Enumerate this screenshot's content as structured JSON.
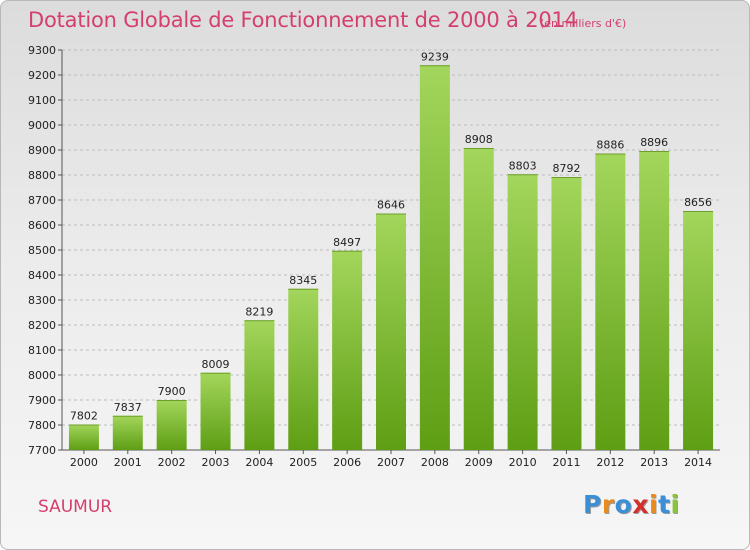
{
  "title": "Dotation Globale de Fonctionnement de 2000 à 2014",
  "subtitle": "(en milliers d'€)",
  "city": "SAUMUR",
  "logo": {
    "letters": [
      "P",
      "r",
      "o",
      "x",
      "i",
      "t",
      "i"
    ],
    "colors": [
      "#3b8fd6",
      "#e98a1f",
      "#3b8fd6",
      "#d6302c",
      "#e98a1f",
      "#3b8fd6",
      "#8cc33c"
    ]
  },
  "colors": {
    "title": "#d43f6e",
    "bar_top": "#a3d65c",
    "bar_bottom": "#5e9e14",
    "grid": "#bdbdbd"
  },
  "chart_data": {
    "type": "bar",
    "title": "Dotation Globale de Fonctionnement de 2000 à 2014",
    "subtitle": "(en milliers d'€)",
    "categories": [
      "2000",
      "2001",
      "2002",
      "2003",
      "2004",
      "2005",
      "2006",
      "2007",
      "2008",
      "2009",
      "2010",
      "2011",
      "2012",
      "2013",
      "2014"
    ],
    "values": [
      7802,
      7837,
      7900,
      8009,
      8219,
      8345,
      8497,
      8646,
      9239,
      8908,
      8803,
      8792,
      8886,
      8896,
      8656
    ],
    "ylim": [
      7700,
      9300
    ],
    "yticks": [
      7700,
      7800,
      7900,
      8000,
      8100,
      8200,
      8300,
      8400,
      8500,
      8600,
      8700,
      8800,
      8900,
      9000,
      9100,
      9200,
      9300
    ],
    "grid": true,
    "xlabel": "",
    "ylabel": ""
  }
}
